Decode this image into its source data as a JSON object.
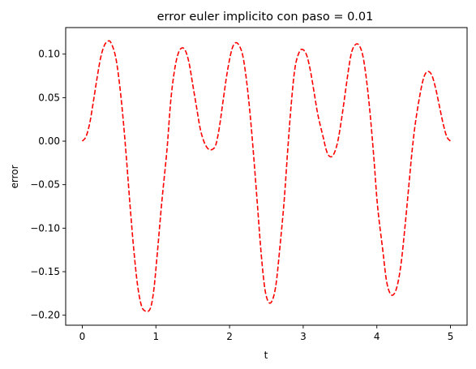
{
  "chart_data": {
    "type": "line",
    "title": "error euler implicito con paso = 0.01",
    "xlabel": "t",
    "ylabel": "error",
    "xlim": [
      -0.225,
      5.225
    ],
    "ylim": [
      -0.2115,
      0.1305
    ],
    "xticks": [
      0,
      1,
      2,
      3,
      4,
      5
    ],
    "xtick_labels": [
      "0",
      "1",
      "2",
      "3",
      "4",
      "5"
    ],
    "yticks": [
      -0.2,
      -0.15,
      -0.1,
      -0.05,
      0.0,
      0.05,
      0.1
    ],
    "ytick_labels": [
      "−0.20",
      "−0.15",
      "−0.10",
      "−0.05",
      "0.00",
      "0.05",
      "0.10"
    ],
    "grid": false,
    "series": [
      {
        "color": "#ff0000",
        "linestyle": "dashed",
        "x": [
          0.0,
          0.05,
          0.1,
          0.15,
          0.2,
          0.25,
          0.3,
          0.35,
          0.39,
          0.45,
          0.5,
          0.55,
          0.6,
          0.65,
          0.7,
          0.75,
          0.8,
          0.85,
          0.92,
          0.97,
          1.02,
          1.08,
          1.15,
          1.2,
          1.25,
          1.3,
          1.35,
          1.4,
          1.45,
          1.5,
          1.55,
          1.6,
          1.65,
          1.7,
          1.75,
          1.81,
          1.86,
          1.91,
          1.97,
          2.03,
          2.08,
          2.13,
          2.18,
          2.23,
          2.28,
          2.33,
          2.38,
          2.43,
          2.48,
          2.53,
          2.58,
          2.63,
          2.68,
          2.74,
          2.79,
          2.84,
          2.89,
          2.95,
          3.0,
          3.05,
          3.1,
          3.15,
          3.2,
          3.27,
          3.32,
          3.37,
          3.42,
          3.47,
          3.52,
          3.57,
          3.62,
          3.66,
          3.71,
          3.76,
          3.81,
          3.86,
          3.91,
          3.96,
          4.01,
          4.08,
          4.13,
          4.18,
          4.23,
          4.28,
          4.33,
          4.38,
          4.43,
          4.48,
          4.53,
          4.6,
          4.65,
          4.7,
          4.75,
          4.8,
          4.85,
          4.9,
          4.95,
          5.0
        ],
        "y": [
          0.0,
          0.005,
          0.02,
          0.045,
          0.072,
          0.096,
          0.11,
          0.115,
          0.113,
          0.098,
          0.07,
          0.03,
          -0.02,
          -0.075,
          -0.125,
          -0.165,
          -0.188,
          -0.195,
          -0.193,
          -0.172,
          -0.128,
          -0.07,
          -0.01,
          0.045,
          0.08,
          0.1,
          0.107,
          0.104,
          0.09,
          0.065,
          0.04,
          0.015,
          0.0,
          -0.008,
          -0.01,
          -0.005,
          0.015,
          0.045,
          0.08,
          0.105,
          0.113,
          0.11,
          0.098,
          0.07,
          0.03,
          -0.02,
          -0.075,
          -0.13,
          -0.17,
          -0.185,
          -0.183,
          -0.165,
          -0.125,
          -0.07,
          -0.01,
          0.045,
          0.085,
          0.103,
          0.105,
          0.098,
          0.08,
          0.055,
          0.03,
          0.005,
          -0.012,
          -0.018,
          -0.014,
          0.0,
          0.025,
          0.055,
          0.085,
          0.103,
          0.111,
          0.11,
          0.098,
          0.07,
          0.03,
          -0.02,
          -0.075,
          -0.125,
          -0.16,
          -0.175,
          -0.176,
          -0.165,
          -0.14,
          -0.1,
          -0.055,
          -0.01,
          0.025,
          0.06,
          0.076,
          0.08,
          0.075,
          0.06,
          0.04,
          0.02,
          0.005,
          0.0
        ]
      }
    ]
  }
}
